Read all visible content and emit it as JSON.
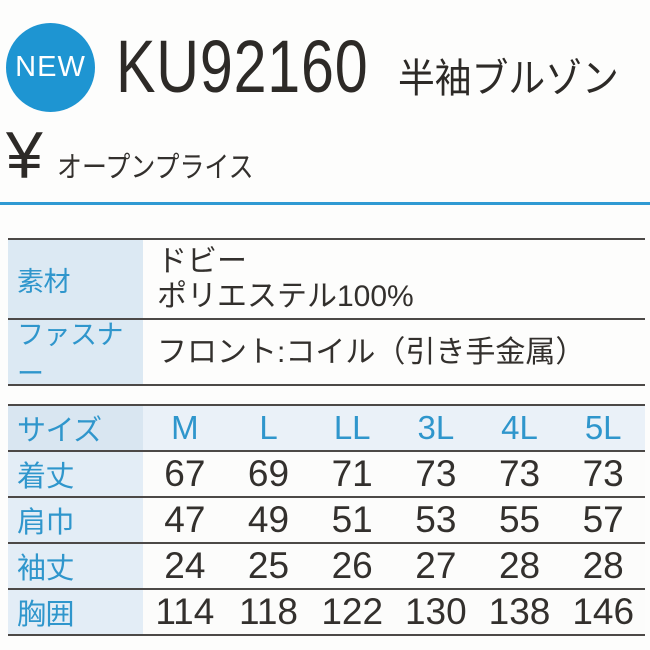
{
  "badge": {
    "label": "NEW"
  },
  "header": {
    "product_code": "KU92160",
    "product_name": "半袖ブルゾン"
  },
  "price": {
    "currency_symbol": "¥",
    "label": "オープンプライス"
  },
  "specs": {
    "rows": [
      {
        "label": "素材",
        "value_lines": [
          "ドビー",
          "ポリエステル100%"
        ]
      },
      {
        "label": "ファスナー",
        "value_lines": [
          "フロント:コイル（引き手金属）"
        ]
      }
    ]
  },
  "size_table": {
    "header_label": "サイズ",
    "sizes": [
      "M",
      "L",
      "LL",
      "3L",
      "4L",
      "5L"
    ],
    "rows": [
      {
        "label": "着丈",
        "values": [
          "67",
          "69",
          "71",
          "73",
          "73",
          "73"
        ]
      },
      {
        "label": "肩巾",
        "values": [
          "47",
          "49",
          "51",
          "53",
          "55",
          "57"
        ]
      },
      {
        "label": "袖丈",
        "values": [
          "24",
          "25",
          "26",
          "27",
          "28",
          "28"
        ]
      },
      {
        "label": "胸囲",
        "values": [
          "114",
          "118",
          "122",
          "130",
          "138",
          "146"
        ]
      }
    ]
  },
  "colors": {
    "badge_blue": "#1e95d2",
    "label_blue_text": "#2f96cc",
    "spec_label_bg": "#dce9f3",
    "size_header_label_bg": "#d9e6f1",
    "size_header_row_bg": "#eaf1f8",
    "size_body_label_bg": "#e3edf6",
    "divider_blue": "#2f9ad3",
    "table_border": "#4c4947",
    "text_dark": "#33302d"
  }
}
